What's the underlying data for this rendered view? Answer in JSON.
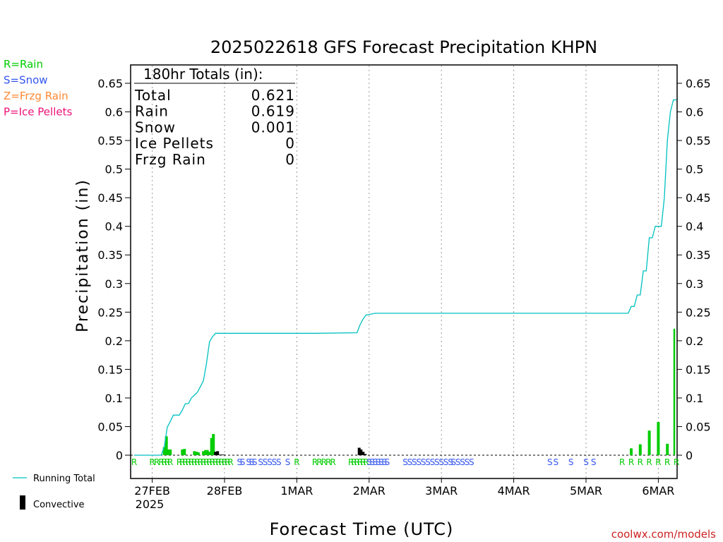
{
  "title": "2025022618 GFS Forecast Precipitation KHPN",
  "xlabel": "Forecast Time (UTC)",
  "ylabel": "Precipitation (in)",
  "credit": "coolwx.com/models",
  "year_label": "2025",
  "colors": {
    "rain": "#00cc00",
    "snow": "#3355ee",
    "frzg": "#ff8833",
    "ice": "#ee1177",
    "running_total": "#00c0c0",
    "convective": "#000000"
  },
  "type_legend": [
    {
      "text": "R=Rain",
      "color": "#00cc00"
    },
    {
      "text": "S=Snow",
      "color": "#3355ee"
    },
    {
      "text": "Z=Frzg Rain",
      "color": "#ff8833"
    },
    {
      "text": "P=Ice Pellets",
      "color": "#ee1177"
    }
  ],
  "series_legend": {
    "running_total": "Running Total",
    "convective": "Convective"
  },
  "totals_box": {
    "header": "180hr Totals (in):",
    "rows": [
      {
        "label": "Total",
        "value": "0.621"
      },
      {
        "label": "Rain",
        "value": "0.619"
      },
      {
        "label": "Snow",
        "value": "0.001"
      },
      {
        "label": "Ice Pellets",
        "value": "0"
      },
      {
        "label": "Frzg Rain",
        "value": "0"
      }
    ]
  },
  "chart_data": {
    "type": "bar",
    "x_unit": "forecast hours from 2025-02-26 18Z",
    "xlim": [
      0,
      180
    ],
    "ylim": [
      0,
      0.65
    ],
    "yticks": [
      "0",
      "0.05",
      "0.1",
      "0.15",
      "0.2",
      "0.25",
      "0.3",
      "0.35",
      "0.4",
      "0.45",
      "0.5",
      "0.55",
      "0.6",
      "0.65"
    ],
    "xticks": [
      {
        "hour": 6,
        "label": "27FEB"
      },
      {
        "hour": 30,
        "label": "28FEB"
      },
      {
        "hour": 54,
        "label": "1MAR"
      },
      {
        "hour": 78,
        "label": "2MAR"
      },
      {
        "hour": 102,
        "label": "3MAR"
      },
      {
        "hour": 126,
        "label": "4MAR"
      },
      {
        "hour": 150,
        "label": "5MAR"
      },
      {
        "hour": 174,
        "label": "6MAR"
      }
    ],
    "grid": "vertical dotted at day boundaries",
    "bar_series": {
      "name": "Precipitation",
      "hours": [
        10,
        10.7,
        11.3,
        12,
        16,
        16.7,
        20,
        20.7,
        21.3,
        23,
        23.7,
        24.3,
        25,
        25.7,
        26.3,
        27,
        27.7,
        28.3,
        29,
        29.7,
        74.7,
        75.3,
        76,
        76.7,
        165,
        168,
        171,
        174,
        177,
        179.3
      ],
      "values": [
        0.014,
        0.033,
        0.01,
        0.01,
        0.01,
        0.011,
        0.007,
        0.006,
        0.005,
        0.007,
        0.009,
        0.009,
        0.006,
        0.03,
        0.037,
        0.006,
        0.007,
        0.001,
        0.001,
        0.001,
        0.013,
        0.01,
        0.006,
        0.002,
        0.012,
        0.019,
        0.043,
        0.058,
        0.02,
        0.221
      ],
      "convective": [
        false,
        false,
        false,
        false,
        false,
        false,
        false,
        false,
        false,
        false,
        false,
        false,
        false,
        false,
        false,
        true,
        true,
        true,
        true,
        true,
        true,
        true,
        true,
        true,
        false,
        false,
        false,
        false,
        false,
        false
      ]
    },
    "running_total": {
      "name": "Running Total",
      "hours": [
        0,
        9,
        10,
        11,
        12,
        13,
        14,
        15,
        16,
        17,
        18,
        19,
        20,
        21,
        22,
        23,
        24,
        25,
        26,
        27,
        28,
        29,
        30,
        40,
        60,
        74,
        75,
        76,
        77,
        78,
        79,
        80,
        90,
        120,
        150,
        164,
        165,
        166,
        167,
        168,
        169,
        170,
        171,
        172,
        173,
        174,
        175,
        176,
        177,
        178,
        179,
        180
      ],
      "values": [
        0,
        0,
        0.015,
        0.049,
        0.059,
        0.07,
        0.07,
        0.07,
        0.079,
        0.09,
        0.09,
        0.1,
        0.105,
        0.11,
        0.12,
        0.13,
        0.16,
        0.198,
        0.207,
        0.213,
        0.213,
        0.213,
        0.213,
        0.213,
        0.213,
        0.214,
        0.228,
        0.238,
        0.245,
        0.246,
        0.247,
        0.248,
        0.248,
        0.248,
        0.248,
        0.248,
        0.26,
        0.26,
        0.28,
        0.28,
        0.322,
        0.322,
        0.38,
        0.38,
        0.4,
        0.4,
        0.4,
        0.45,
        0.55,
        0.6,
        0.621,
        0.621
      ]
    },
    "precip_type_markers": [
      {
        "hour": 0,
        "type": "R"
      },
      {
        "hour": 6,
        "type": "R"
      },
      {
        "hour": 7.5,
        "type": "R"
      },
      {
        "hour": 9,
        "type": "R"
      },
      {
        "hour": 10,
        "type": "R"
      },
      {
        "hour": 11,
        "type": "R"
      },
      {
        "hour": 12,
        "type": "R"
      },
      {
        "hour": 15,
        "type": "R"
      },
      {
        "hour": 16,
        "type": "R"
      },
      {
        "hour": 17,
        "type": "R"
      },
      {
        "hour": 18,
        "type": "R"
      },
      {
        "hour": 19,
        "type": "R"
      },
      {
        "hour": 20,
        "type": "R"
      },
      {
        "hour": 21,
        "type": "R"
      },
      {
        "hour": 22,
        "type": "R"
      },
      {
        "hour": 23,
        "type": "R"
      },
      {
        "hour": 24,
        "type": "R"
      },
      {
        "hour": 25,
        "type": "R"
      },
      {
        "hour": 26,
        "type": "R"
      },
      {
        "hour": 27,
        "type": "R"
      },
      {
        "hour": 28,
        "type": "R"
      },
      {
        "hour": 29,
        "type": "R"
      },
      {
        "hour": 30,
        "type": "R"
      },
      {
        "hour": 31,
        "type": "R"
      },
      {
        "hour": 32,
        "type": "R"
      },
      {
        "hour": 35,
        "type": "S"
      },
      {
        "hour": 36,
        "type": "S"
      },
      {
        "hour": 38,
        "type": "S"
      },
      {
        "hour": 39,
        "type": "S"
      },
      {
        "hour": 40,
        "type": "S"
      },
      {
        "hour": 42,
        "type": "S"
      },
      {
        "hour": 43.5,
        "type": "S"
      },
      {
        "hour": 45,
        "type": "S"
      },
      {
        "hour": 46.5,
        "type": "S"
      },
      {
        "hour": 48,
        "type": "S"
      },
      {
        "hour": 51,
        "type": "S"
      },
      {
        "hour": 54,
        "type": "R"
      },
      {
        "hour": 60,
        "type": "R"
      },
      {
        "hour": 61.5,
        "type": "R"
      },
      {
        "hour": 63,
        "type": "R"
      },
      {
        "hour": 64.5,
        "type": "R"
      },
      {
        "hour": 66,
        "type": "R"
      },
      {
        "hour": 72,
        "type": "R"
      },
      {
        "hour": 73,
        "type": "R"
      },
      {
        "hour": 74,
        "type": "R"
      },
      {
        "hour": 75,
        "type": "R"
      },
      {
        "hour": 76,
        "type": "R"
      },
      {
        "hour": 77,
        "type": "R"
      },
      {
        "hour": 78,
        "type": "S"
      },
      {
        "hour": 79,
        "type": "S"
      },
      {
        "hour": 80,
        "type": "S"
      },
      {
        "hour": 81,
        "type": "S"
      },
      {
        "hour": 82,
        "type": "S"
      },
      {
        "hour": 83,
        "type": "S"
      },
      {
        "hour": 84,
        "type": "S"
      },
      {
        "hour": 90,
        "type": "S"
      },
      {
        "hour": 91.5,
        "type": "S"
      },
      {
        "hour": 93,
        "type": "S"
      },
      {
        "hour": 94.5,
        "type": "S"
      },
      {
        "hour": 96,
        "type": "S"
      },
      {
        "hour": 97.5,
        "type": "S"
      },
      {
        "hour": 99,
        "type": "S"
      },
      {
        "hour": 100.5,
        "type": "S"
      },
      {
        "hour": 102,
        "type": "S"
      },
      {
        "hour": 103.5,
        "type": "S"
      },
      {
        "hour": 105,
        "type": "S"
      },
      {
        "hour": 106,
        "type": "S"
      },
      {
        "hour": 107.5,
        "type": "S"
      },
      {
        "hour": 109,
        "type": "S"
      },
      {
        "hour": 110.5,
        "type": "S"
      },
      {
        "hour": 112,
        "type": "S"
      },
      {
        "hour": 138,
        "type": "S"
      },
      {
        "hour": 140,
        "type": "S"
      },
      {
        "hour": 145,
        "type": "S"
      },
      {
        "hour": 150,
        "type": "S"
      },
      {
        "hour": 152.5,
        "type": "S"
      },
      {
        "hour": 162,
        "type": "R"
      },
      {
        "hour": 165,
        "type": "R"
      },
      {
        "hour": 168,
        "type": "R"
      },
      {
        "hour": 171,
        "type": "R"
      },
      {
        "hour": 174,
        "type": "R"
      },
      {
        "hour": 177,
        "type": "R"
      },
      {
        "hour": 180,
        "type": "R"
      }
    ]
  }
}
